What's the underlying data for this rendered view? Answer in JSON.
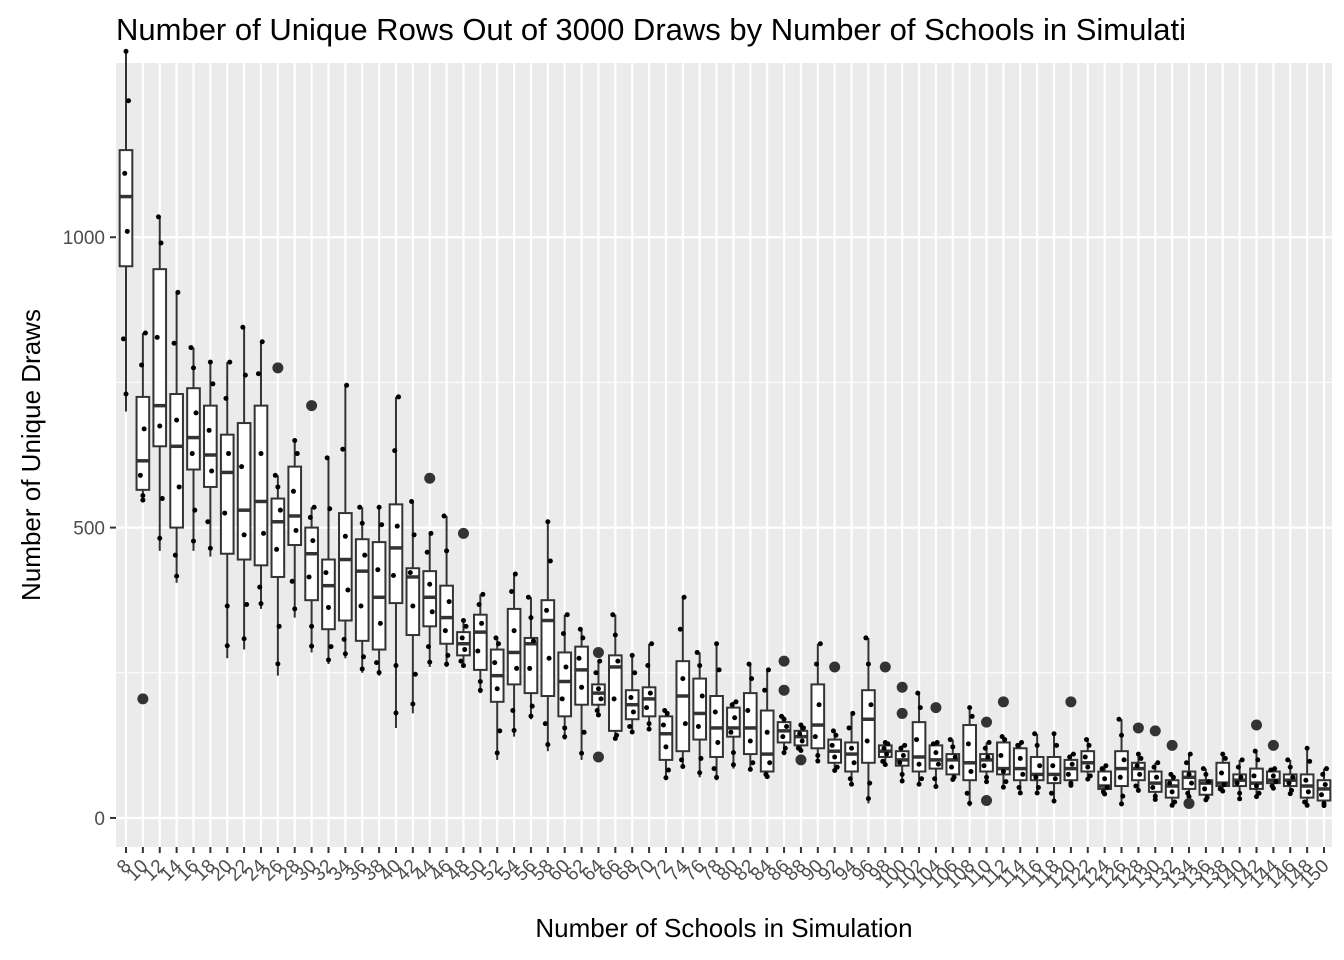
{
  "chart_data": {
    "type": "box",
    "title": "Number of Unique Rows Out of 3000 Draws by Number of Schools in Simulati",
    "xlabel": "Number of Schools in Simulation",
    "ylabel": "Number of Unique Draws",
    "ylim": [
      -50,
      1300
    ],
    "y_ticks": [
      0,
      500,
      1000
    ],
    "grid": true,
    "x": [
      8,
      10,
      12,
      14,
      16,
      18,
      20,
      22,
      24,
      26,
      28,
      30,
      32,
      34,
      36,
      38,
      40,
      42,
      44,
      46,
      48,
      50,
      52,
      54,
      56,
      58,
      60,
      62,
      64,
      66,
      68,
      70,
      72,
      74,
      76,
      78,
      80,
      82,
      84,
      86,
      88,
      90,
      92,
      94,
      96,
      98,
      100,
      102,
      104,
      106,
      108,
      110,
      112,
      114,
      116,
      118,
      120,
      122,
      124,
      126,
      128,
      130,
      132,
      134,
      136,
      138,
      140,
      142,
      144,
      146,
      148,
      150
    ],
    "boxes": [
      {
        "q1": 950,
        "median": 1070,
        "q3": 1150,
        "lo": 700,
        "hi": 1320,
        "outliers": []
      },
      {
        "q1": 565,
        "median": 615,
        "q3": 725,
        "lo": 545,
        "hi": 835,
        "outliers": [
          205
        ]
      },
      {
        "q1": 640,
        "median": 710,
        "q3": 945,
        "lo": 460,
        "hi": 1035,
        "outliers": []
      },
      {
        "q1": 500,
        "median": 640,
        "q3": 730,
        "lo": 405,
        "hi": 905,
        "outliers": []
      },
      {
        "q1": 600,
        "median": 655,
        "q3": 740,
        "lo": 460,
        "hi": 810,
        "outliers": []
      },
      {
        "q1": 570,
        "median": 625,
        "q3": 710,
        "lo": 450,
        "hi": 785,
        "outliers": []
      },
      {
        "q1": 455,
        "median": 595,
        "q3": 660,
        "lo": 275,
        "hi": 785,
        "outliers": []
      },
      {
        "q1": 445,
        "median": 530,
        "q3": 680,
        "lo": 290,
        "hi": 845,
        "outliers": []
      },
      {
        "q1": 435,
        "median": 545,
        "q3": 710,
        "lo": 360,
        "hi": 820,
        "outliers": []
      },
      {
        "q1": 415,
        "median": 510,
        "q3": 550,
        "lo": 245,
        "hi": 590,
        "outliers": [
          775
        ]
      },
      {
        "q1": 470,
        "median": 520,
        "q3": 605,
        "lo": 345,
        "hi": 650,
        "outliers": []
      },
      {
        "q1": 375,
        "median": 455,
        "q3": 500,
        "lo": 285,
        "hi": 535,
        "outliers": [
          710
        ]
      },
      {
        "q1": 325,
        "median": 400,
        "q3": 445,
        "lo": 265,
        "hi": 620,
        "outliers": []
      },
      {
        "q1": 340,
        "median": 445,
        "q3": 525,
        "lo": 275,
        "hi": 745,
        "outliers": []
      },
      {
        "q1": 305,
        "median": 425,
        "q3": 480,
        "lo": 250,
        "hi": 535,
        "outliers": []
      },
      {
        "q1": 290,
        "median": 380,
        "q3": 475,
        "lo": 245,
        "hi": 535,
        "outliers": []
      },
      {
        "q1": 370,
        "median": 465,
        "q3": 540,
        "lo": 155,
        "hi": 725,
        "outliers": []
      },
      {
        "q1": 315,
        "median": 415,
        "q3": 430,
        "lo": 180,
        "hi": 545,
        "outliers": []
      },
      {
        "q1": 330,
        "median": 380,
        "q3": 425,
        "lo": 260,
        "hi": 490,
        "outliers": [
          585
        ]
      },
      {
        "q1": 300,
        "median": 345,
        "q3": 400,
        "lo": 260,
        "hi": 520,
        "outliers": []
      },
      {
        "q1": 280,
        "median": 300,
        "q3": 320,
        "lo": 260,
        "hi": 340,
        "outliers": [
          490
        ]
      },
      {
        "q1": 255,
        "median": 320,
        "q3": 350,
        "lo": 215,
        "hi": 385,
        "outliers": []
      },
      {
        "q1": 200,
        "median": 245,
        "q3": 290,
        "lo": 100,
        "hi": 310,
        "outliers": []
      },
      {
        "q1": 230,
        "median": 285,
        "q3": 360,
        "lo": 140,
        "hi": 420,
        "outliers": []
      },
      {
        "q1": 215,
        "median": 300,
        "q3": 310,
        "lo": 170,
        "hi": 380,
        "outliers": []
      },
      {
        "q1": 210,
        "median": 340,
        "q3": 375,
        "lo": 115,
        "hi": 510,
        "outliers": []
      },
      {
        "q1": 175,
        "median": 235,
        "q3": 285,
        "lo": 135,
        "hi": 350,
        "outliers": []
      },
      {
        "q1": 195,
        "median": 255,
        "q3": 295,
        "lo": 100,
        "hi": 325,
        "outliers": []
      },
      {
        "q1": 195,
        "median": 215,
        "q3": 230,
        "lo": 175,
        "hi": 270,
        "outliers": [
          105,
          285
        ]
      },
      {
        "q1": 150,
        "median": 260,
        "q3": 280,
        "lo": 135,
        "hi": 350,
        "outliers": []
      },
      {
        "q1": 170,
        "median": 195,
        "q3": 220,
        "lo": 145,
        "hi": 280,
        "outliers": []
      },
      {
        "q1": 175,
        "median": 205,
        "q3": 225,
        "lo": 150,
        "hi": 300,
        "outliers": []
      },
      {
        "q1": 100,
        "median": 145,
        "q3": 175,
        "lo": 65,
        "hi": 185,
        "outliers": []
      },
      {
        "q1": 115,
        "median": 210,
        "q3": 270,
        "lo": 85,
        "hi": 380,
        "outliers": []
      },
      {
        "q1": 135,
        "median": 180,
        "q3": 240,
        "lo": 70,
        "hi": 285,
        "outliers": []
      },
      {
        "q1": 105,
        "median": 155,
        "q3": 210,
        "lo": 65,
        "hi": 300,
        "outliers": []
      },
      {
        "q1": 140,
        "median": 155,
        "q3": 190,
        "lo": 85,
        "hi": 200,
        "outliers": []
      },
      {
        "q1": 110,
        "median": 155,
        "q3": 215,
        "lo": 80,
        "hi": 265,
        "outliers": []
      },
      {
        "q1": 80,
        "median": 110,
        "q3": 185,
        "lo": 70,
        "hi": 255,
        "outliers": []
      },
      {
        "q1": 130,
        "median": 150,
        "q3": 165,
        "lo": 110,
        "hi": 175,
        "outliers": [
          220,
          270
        ]
      },
      {
        "q1": 125,
        "median": 140,
        "q3": 150,
        "lo": 115,
        "hi": 160,
        "outliers": [
          100
        ]
      },
      {
        "q1": 120,
        "median": 160,
        "q3": 230,
        "lo": 95,
        "hi": 300,
        "outliers": []
      },
      {
        "q1": 95,
        "median": 115,
        "q3": 135,
        "lo": 80,
        "hi": 150,
        "outliers": [
          260
        ]
      },
      {
        "q1": 80,
        "median": 110,
        "q3": 130,
        "lo": 55,
        "hi": 180,
        "outliers": []
      },
      {
        "q1": 95,
        "median": 170,
        "q3": 220,
        "lo": 25,
        "hi": 310,
        "outliers": []
      },
      {
        "q1": 105,
        "median": 115,
        "q3": 125,
        "lo": 90,
        "hi": 130,
        "outliers": [
          260
        ]
      },
      {
        "q1": 90,
        "median": 100,
        "q3": 115,
        "lo": 60,
        "hi": 125,
        "outliers": [
          180,
          225
        ]
      },
      {
        "q1": 80,
        "median": 105,
        "q3": 165,
        "lo": 55,
        "hi": 215,
        "outliers": []
      },
      {
        "q1": 85,
        "median": 100,
        "q3": 125,
        "lo": 50,
        "hi": 130,
        "outliers": [
          190
        ]
      },
      {
        "q1": 75,
        "median": 100,
        "q3": 110,
        "lo": 65,
        "hi": 135,
        "outliers": []
      },
      {
        "q1": 65,
        "median": 95,
        "q3": 160,
        "lo": 20,
        "hi": 190,
        "outliers": []
      },
      {
        "q1": 80,
        "median": 100,
        "q3": 110,
        "lo": 60,
        "hi": 130,
        "outliers": [
          30,
          165
        ]
      },
      {
        "q1": 75,
        "median": 85,
        "q3": 130,
        "lo": 50,
        "hi": 140,
        "outliers": [
          200
        ]
      },
      {
        "q1": 65,
        "median": 85,
        "q3": 120,
        "lo": 40,
        "hi": 130,
        "outliers": []
      },
      {
        "q1": 65,
        "median": 75,
        "q3": 105,
        "lo": 40,
        "hi": 145,
        "outliers": []
      },
      {
        "q1": 60,
        "median": 75,
        "q3": 105,
        "lo": 25,
        "hi": 145,
        "outliers": []
      },
      {
        "q1": 65,
        "median": 85,
        "q3": 100,
        "lo": 55,
        "hi": 110,
        "outliers": [
          200
        ]
      },
      {
        "q1": 80,
        "median": 95,
        "q3": 115,
        "lo": 65,
        "hi": 135,
        "outliers": []
      },
      {
        "q1": 50,
        "median": 55,
        "q3": 80,
        "lo": 40,
        "hi": 90,
        "outliers": []
      },
      {
        "q1": 55,
        "median": 85,
        "q3": 115,
        "lo": 20,
        "hi": 170,
        "outliers": []
      },
      {
        "q1": 65,
        "median": 85,
        "q3": 95,
        "lo": 45,
        "hi": 110,
        "outliers": [
          155
        ]
      },
      {
        "q1": 45,
        "median": 60,
        "q3": 80,
        "lo": 30,
        "hi": 95,
        "outliers": [
          150
        ]
      },
      {
        "q1": 35,
        "median": 55,
        "q3": 65,
        "lo": 20,
        "hi": 75,
        "outliers": [
          125
        ]
      },
      {
        "q1": 50,
        "median": 70,
        "q3": 80,
        "lo": 35,
        "hi": 110,
        "outliers": [
          25
        ]
      },
      {
        "q1": 40,
        "median": 60,
        "q3": 65,
        "lo": 30,
        "hi": 85,
        "outliers": []
      },
      {
        "q1": 55,
        "median": 60,
        "q3": 95,
        "lo": 45,
        "hi": 110,
        "outliers": []
      },
      {
        "q1": 55,
        "median": 65,
        "q3": 75,
        "lo": 30,
        "hi": 100,
        "outliers": []
      },
      {
        "q1": 50,
        "median": 60,
        "q3": 85,
        "lo": 35,
        "hi": 115,
        "outliers": [
          160
        ]
      },
      {
        "q1": 60,
        "median": 65,
        "q3": 80,
        "lo": 50,
        "hi": 85,
        "outliers": [
          125
        ]
      },
      {
        "q1": 55,
        "median": 65,
        "q3": 75,
        "lo": 40,
        "hi": 100,
        "outliers": []
      },
      {
        "q1": 35,
        "median": 55,
        "q3": 75,
        "lo": 20,
        "hi": 120,
        "outliers": []
      },
      {
        "q1": 30,
        "median": 50,
        "q3": 65,
        "lo": 20,
        "hi": 85,
        "outliers": []
      }
    ]
  },
  "colors": {
    "panel_bg": "#ebebeb",
    "grid": "#ffffff",
    "box_fill": "#ffffff",
    "box_stroke": "#333333",
    "point": "#000000",
    "outlier": "#333333"
  }
}
